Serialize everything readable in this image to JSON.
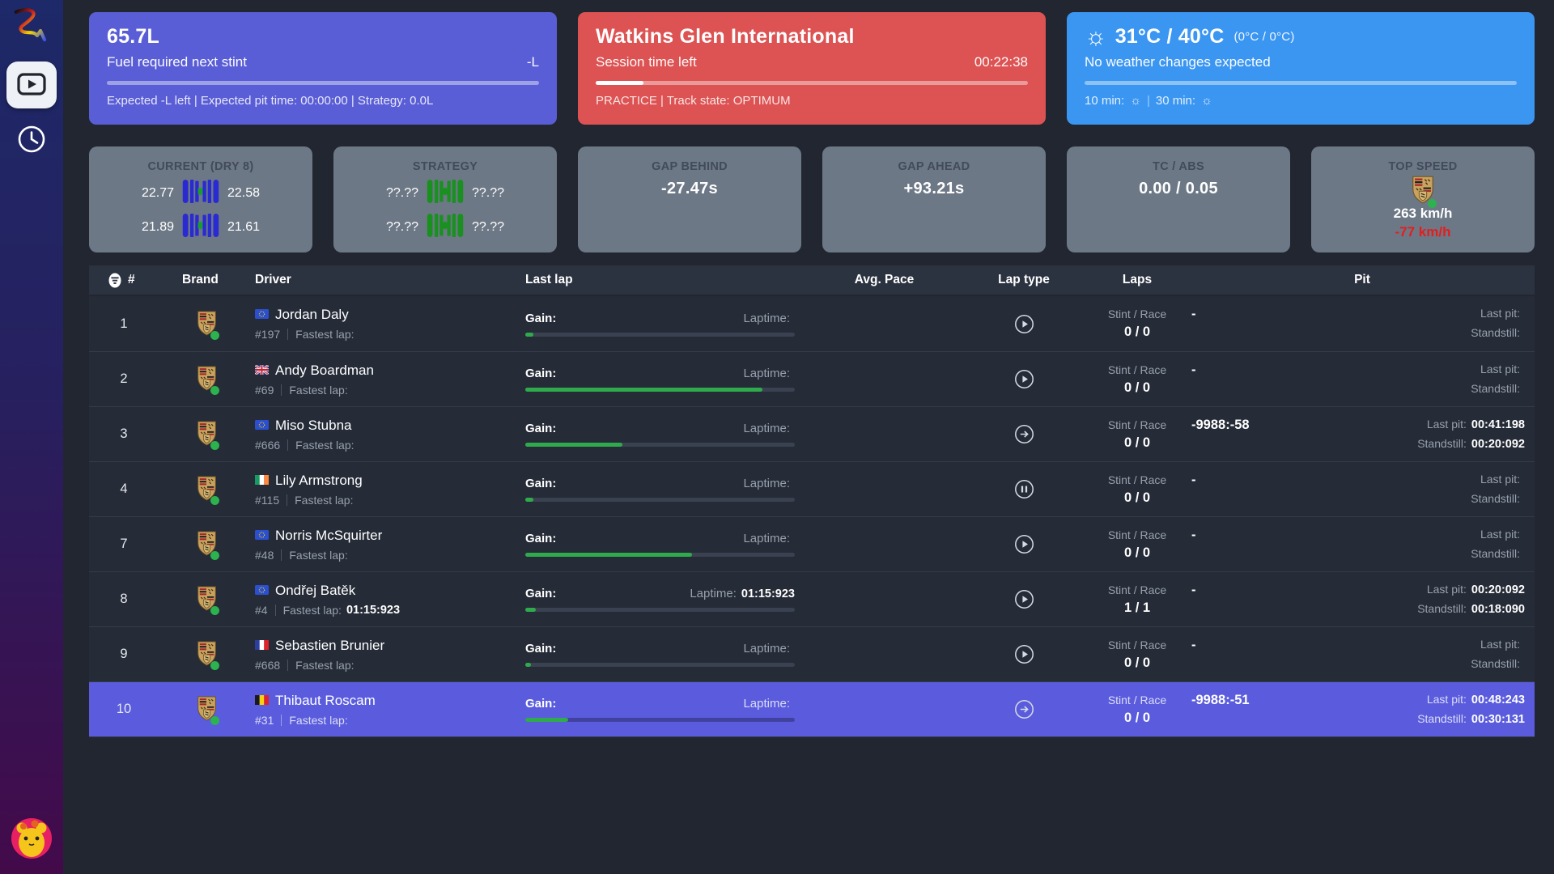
{
  "icons": {
    "sun": "☼"
  },
  "top_cards": {
    "fuel": {
      "value": "65.7L",
      "label": "Fuel required next stint",
      "unit_right": "-L",
      "footer": "Expected -L left | Expected pit time: 00:00:00 | Strategy: 0.0L",
      "color": "#5a5ed6",
      "progress_pct": 0
    },
    "session": {
      "title": "Watkins Glen International",
      "label": "Session time left",
      "time_left": "00:22:38",
      "footer": "PRACTICE | Track state: OPTIMUM",
      "color": "#dd5252",
      "progress_pct": 11
    },
    "weather": {
      "title": "31°C / 40°C",
      "title_note": "(0°C / 0°C)",
      "label": "No weather changes expected",
      "footer_10": "10 min:",
      "footer_30": "30 min:",
      "color": "#3b96f2",
      "progress_pct": 0
    }
  },
  "stat_cards": [
    {
      "type": "tyres",
      "label": "CURRENT (DRY 8)",
      "wheel_color": "#2a2ad2",
      "axle_color": "#1d9e2c",
      "rows": [
        [
          "22.77",
          "22.58"
        ],
        [
          "21.89",
          "21.61"
        ]
      ]
    },
    {
      "type": "tyres",
      "label": "STRATEGY",
      "wheel_color": "#1a9021",
      "axle_color": "#1a9021",
      "rows": [
        [
          "??.??",
          "??.??"
        ],
        [
          "??.??",
          "??.??"
        ]
      ]
    },
    {
      "type": "value",
      "label": "GAP BEHIND",
      "value": "-27.47s"
    },
    {
      "type": "value",
      "label": "GAP AHEAD",
      "value": "+93.21s"
    },
    {
      "type": "value",
      "label": "TC / ABS",
      "value": "0.00 / 0.05"
    },
    {
      "type": "speed",
      "label": "TOP SPEED",
      "value": "263 km/h",
      "delta": "-77 km/h"
    }
  ],
  "table": {
    "headers": {
      "pos": "#",
      "brand": "Brand",
      "driver": "Driver",
      "last_lap": "Last lap",
      "avg_pace": "Avg. Pace",
      "lap_type": "Lap type",
      "laps": "Laps",
      "pit": "Pit"
    },
    "labels": {
      "gain": "Gain:",
      "laptime": "Laptime:",
      "fastest": "Fastest lap:",
      "stint_race": "Stint / Race",
      "last_pit": "Last pit:",
      "standstill": "Standstill:"
    },
    "rows": [
      {
        "pos": "1",
        "flag": "eu",
        "name": "Jordan Daly",
        "number": "#197",
        "fastest": "",
        "laptime": "",
        "gain_pct": 3,
        "lap_type": "play",
        "laps": "0 / 0",
        "pit_timer": "-",
        "last_pit": "",
        "standstill": "",
        "highlight": false
      },
      {
        "pos": "2",
        "flag": "gb",
        "name": "Andy Boardman",
        "number": "#69",
        "fastest": "",
        "laptime": "",
        "gain_pct": 88,
        "lap_type": "play",
        "laps": "0 / 0",
        "pit_timer": "-",
        "last_pit": "",
        "standstill": "",
        "highlight": false
      },
      {
        "pos": "3",
        "flag": "eu",
        "name": "Miso Stubna",
        "number": "#666",
        "fastest": "",
        "laptime": "",
        "gain_pct": 36,
        "lap_type": "arrow",
        "laps": "0 / 0",
        "pit_timer": "-9988:-58",
        "last_pit": "00:41:198",
        "standstill": "00:20:092",
        "highlight": false
      },
      {
        "pos": "4",
        "flag": "ie",
        "name": "Lily Armstrong",
        "number": "#115",
        "fastest": "",
        "laptime": "",
        "gain_pct": 3,
        "lap_type": "pause",
        "laps": "0 / 0",
        "pit_timer": "-",
        "last_pit": "",
        "standstill": "",
        "highlight": false
      },
      {
        "pos": "7",
        "flag": "eu",
        "name": "Norris McSquirter",
        "number": "#48",
        "fastest": "",
        "laptime": "",
        "gain_pct": 62,
        "lap_type": "play",
        "laps": "0 / 0",
        "pit_timer": "-",
        "last_pit": "",
        "standstill": "",
        "highlight": false
      },
      {
        "pos": "8",
        "flag": "eu",
        "name": "Ondřej Batěk",
        "number": "#4",
        "fastest": "01:15:923",
        "laptime": "01:15:923",
        "gain_pct": 4,
        "lap_type": "play",
        "laps": "1 / 1",
        "pit_timer": "-",
        "last_pit": "00:20:092",
        "standstill": "00:18:090",
        "highlight": false
      },
      {
        "pos": "9",
        "flag": "fr",
        "name": "Sebastien Brunier",
        "number": "#668",
        "fastest": "",
        "laptime": "",
        "gain_pct": 2,
        "lap_type": "play",
        "laps": "0 / 0",
        "pit_timer": "-",
        "last_pit": "",
        "standstill": "",
        "highlight": false
      },
      {
        "pos": "10",
        "flag": "be",
        "name": "Thibaut Roscam",
        "number": "#31",
        "fastest": "",
        "laptime": "",
        "gain_pct": 16,
        "lap_type": "arrow",
        "laps": "0 / 0",
        "pit_timer": "-9988:-51",
        "last_pit": "00:48:243",
        "standstill": "00:30:131",
        "highlight": true
      }
    ]
  }
}
